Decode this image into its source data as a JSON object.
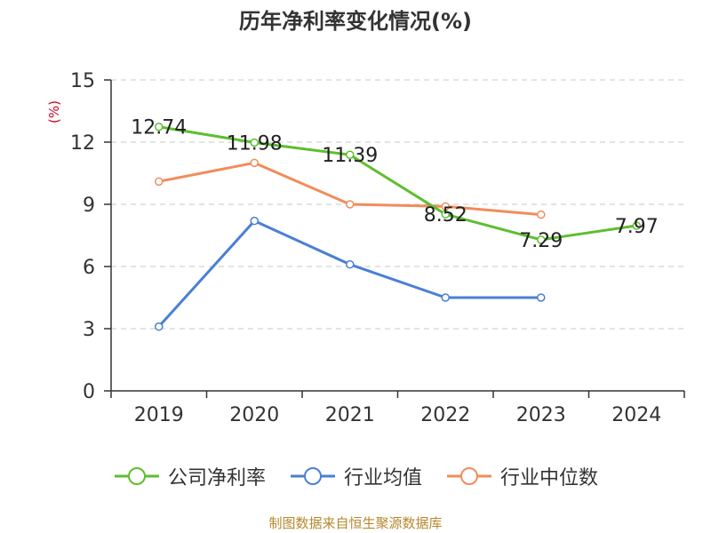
{
  "chart_data": {
    "type": "line",
    "title": "历年净利率变化情况(%)",
    "ylabel": "(%)",
    "xlabel": "",
    "categories": [
      "2019",
      "2020",
      "2021",
      "2022",
      "2023",
      "2024"
    ],
    "ylim": [
      0,
      15
    ],
    "yticks": [
      0,
      3,
      6,
      9,
      12,
      15
    ],
    "grid": true,
    "legend_position": "bottom",
    "series": [
      {
        "name": "公司净利率",
        "color": "#5dbf2f",
        "values": [
          12.74,
          11.98,
          11.39,
          8.52,
          7.29,
          7.97
        ],
        "labels": [
          "12.74",
          "11.98",
          "11.39",
          "8.52",
          "7.29",
          "7.97"
        ]
      },
      {
        "name": "行业均值",
        "color": "#4a7fd6",
        "values": [
          3.1,
          8.2,
          6.1,
          4.5,
          4.5,
          null
        ]
      },
      {
        "name": "行业中位数",
        "color": "#f28c5a",
        "values": [
          10.1,
          11.0,
          9.0,
          8.9,
          8.5,
          null
        ]
      }
    ]
  },
  "source": "制图数据来自恒生聚源数据库"
}
